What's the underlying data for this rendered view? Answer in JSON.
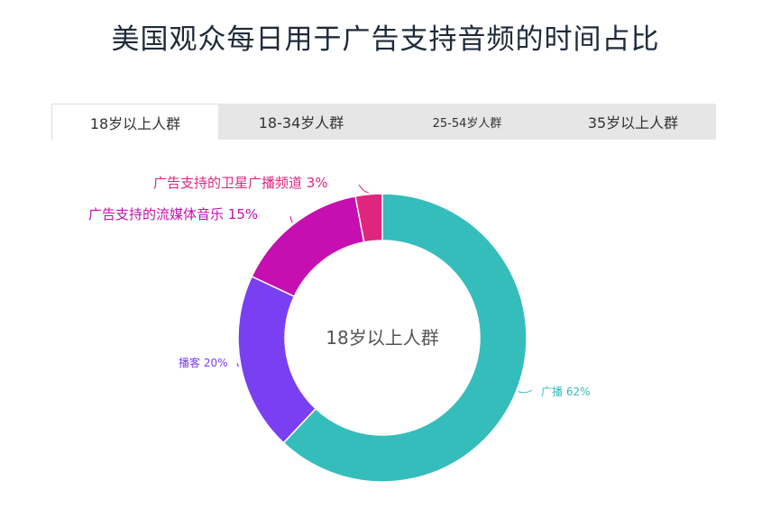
{
  "title": "美国观众每日用于广告支持音频的时间占比",
  "tabs": [
    {
      "label": "18岁以上人群",
      "active": true
    },
    {
      "label": "18-34岁人群",
      "active": false
    },
    {
      "label": "25-54岁人群",
      "active": false
    },
    {
      "label": "35岁以上人群",
      "active": false
    }
  ],
  "chart_data": {
    "type": "pie",
    "subtype": "donut",
    "center_label": "18岁以上人群",
    "slices": [
      {
        "name": "广播",
        "value": 62,
        "label": "广播 62%",
        "color": "#35bdbc"
      },
      {
        "name": "播客",
        "value": 20,
        "label": "播客 20%",
        "color": "#7b3ff2"
      },
      {
        "name": "广告支持的流媒体音乐",
        "value": 15,
        "label": "广告支持的流媒体音乐 15%",
        "color": "#c50fb0"
      },
      {
        "name": "广告支持的卫星广播频道",
        "value": 3,
        "label": "广告支持的卫星广播频道 3%",
        "color": "#e0257f"
      }
    ]
  }
}
